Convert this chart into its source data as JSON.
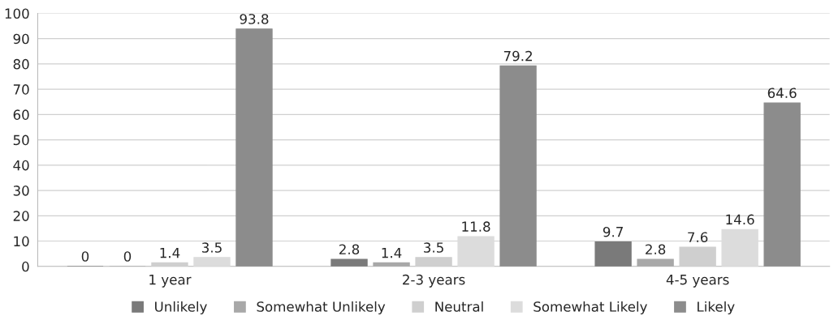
{
  "chart_data": {
    "type": "bar",
    "categories": [
      "1 year",
      "2-3 years",
      "4-5 years"
    ],
    "series": [
      {
        "name": "Unlikely",
        "color": "#7a7a7a",
        "values": [
          0,
          2.8,
          9.7
        ]
      },
      {
        "name": "Somewhat Unlikely",
        "color": "#a8a8a8",
        "values": [
          0,
          1.4,
          2.8
        ]
      },
      {
        "name": "Neutral",
        "color": "#cfcfcf",
        "values": [
          1.4,
          3.5,
          7.6
        ]
      },
      {
        "name": "Somewhat Likely",
        "color": "#dcdcdc",
        "values": [
          3.5,
          11.8,
          14.6
        ]
      },
      {
        "name": "Likely",
        "color": "#8c8c8c",
        "values": [
          93.8,
          79.2,
          64.6
        ]
      }
    ],
    "ylim": [
      0,
      100
    ],
    "yticks": [
      0,
      10,
      20,
      30,
      40,
      50,
      60,
      70,
      80,
      90,
      100
    ],
    "grid": "y",
    "legend": "bottom",
    "data_labels": true
  }
}
